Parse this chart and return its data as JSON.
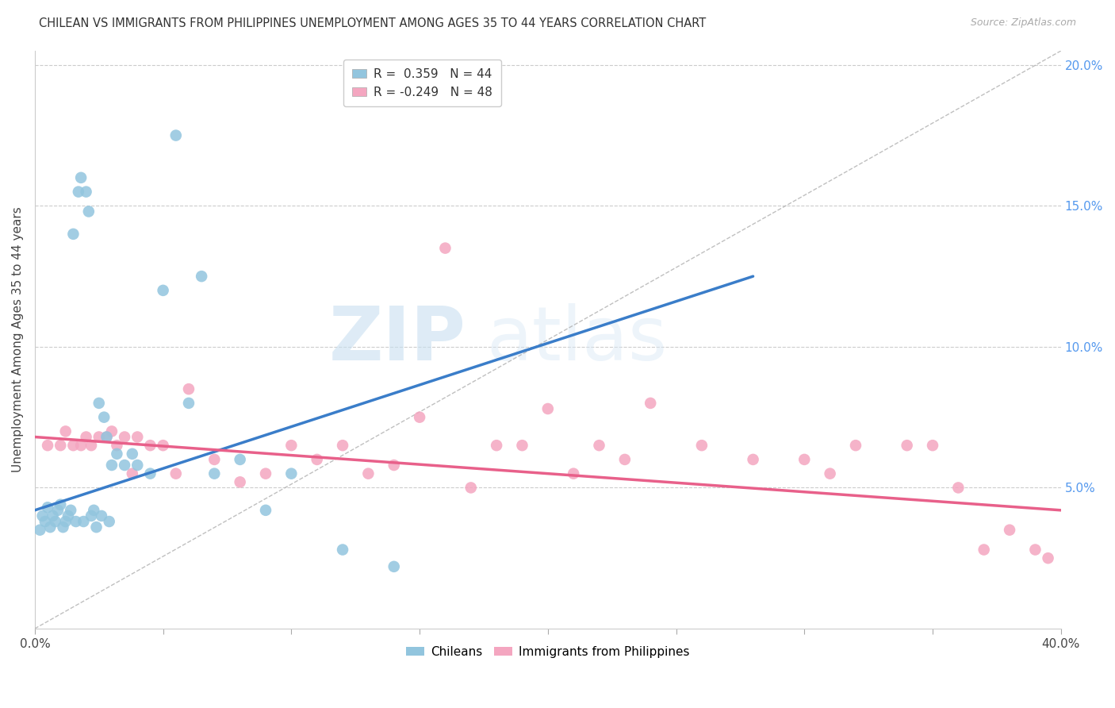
{
  "title": "CHILEAN VS IMMIGRANTS FROM PHILIPPINES UNEMPLOYMENT AMONG AGES 35 TO 44 YEARS CORRELATION CHART",
  "source": "Source: ZipAtlas.com",
  "ylabel": "Unemployment Among Ages 35 to 44 years",
  "xlim": [
    0.0,
    0.4
  ],
  "ylim": [
    0.0,
    0.205
  ],
  "xticks": [
    0.0,
    0.05,
    0.1,
    0.15,
    0.2,
    0.25,
    0.3,
    0.35,
    0.4
  ],
  "yticks_right": [
    0.05,
    0.1,
    0.15,
    0.2
  ],
  "ytick_labels_right": [
    "5.0%",
    "10.0%",
    "15.0%",
    "20.0%"
  ],
  "blue_color": "#92c5de",
  "pink_color": "#f4a6c0",
  "blue_line_color": "#3a7dc9",
  "pink_line_color": "#e8608a",
  "watermark_zip": "ZIP",
  "watermark_atlas": "atlas",
  "chilean_x": [
    0.002,
    0.003,
    0.004,
    0.005,
    0.006,
    0.007,
    0.008,
    0.009,
    0.01,
    0.011,
    0.012,
    0.013,
    0.014,
    0.015,
    0.016,
    0.017,
    0.018,
    0.019,
    0.02,
    0.021,
    0.022,
    0.023,
    0.024,
    0.025,
    0.026,
    0.027,
    0.028,
    0.029,
    0.03,
    0.032,
    0.035,
    0.038,
    0.04,
    0.045,
    0.05,
    0.055,
    0.06,
    0.065,
    0.07,
    0.08,
    0.09,
    0.1,
    0.12,
    0.14
  ],
  "chilean_y": [
    0.035,
    0.04,
    0.038,
    0.043,
    0.036,
    0.04,
    0.038,
    0.042,
    0.044,
    0.036,
    0.038,
    0.04,
    0.042,
    0.14,
    0.038,
    0.155,
    0.16,
    0.038,
    0.155,
    0.148,
    0.04,
    0.042,
    0.036,
    0.08,
    0.04,
    0.075,
    0.068,
    0.038,
    0.058,
    0.062,
    0.058,
    0.062,
    0.058,
    0.055,
    0.12,
    0.175,
    0.08,
    0.125,
    0.055,
    0.06,
    0.042,
    0.055,
    0.028,
    0.022
  ],
  "philippines_x": [
    0.005,
    0.01,
    0.012,
    0.015,
    0.018,
    0.02,
    0.022,
    0.025,
    0.028,
    0.03,
    0.032,
    0.035,
    0.038,
    0.04,
    0.045,
    0.05,
    0.055,
    0.06,
    0.07,
    0.08,
    0.09,
    0.1,
    0.11,
    0.12,
    0.13,
    0.14,
    0.15,
    0.16,
    0.17,
    0.18,
    0.19,
    0.2,
    0.21,
    0.22,
    0.23,
    0.24,
    0.26,
    0.28,
    0.3,
    0.31,
    0.32,
    0.34,
    0.35,
    0.36,
    0.37,
    0.38,
    0.39,
    0.395
  ],
  "philippines_y": [
    0.065,
    0.065,
    0.07,
    0.065,
    0.065,
    0.068,
    0.065,
    0.068,
    0.068,
    0.07,
    0.065,
    0.068,
    0.055,
    0.068,
    0.065,
    0.065,
    0.055,
    0.085,
    0.06,
    0.052,
    0.055,
    0.065,
    0.06,
    0.065,
    0.055,
    0.058,
    0.075,
    0.135,
    0.05,
    0.065,
    0.065,
    0.078,
    0.055,
    0.065,
    0.06,
    0.08,
    0.065,
    0.06,
    0.06,
    0.055,
    0.065,
    0.065,
    0.065,
    0.05,
    0.028,
    0.035,
    0.028,
    0.025
  ],
  "blue_trend_x": [
    0.0,
    0.28
  ],
  "blue_trend_y": [
    0.042,
    0.125
  ],
  "pink_trend_x": [
    0.0,
    0.4
  ],
  "pink_trend_y": [
    0.068,
    0.042
  ]
}
